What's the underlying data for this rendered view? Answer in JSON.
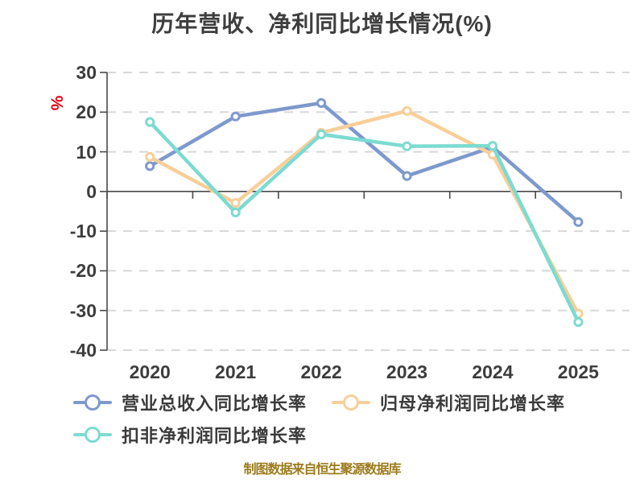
{
  "title": "历年营收、净利同比增长情况(%)",
  "y_axis_unit": "%",
  "footer": "制图数据来自恒生聚源数据库",
  "colors": {
    "unit_label": "#e60012",
    "footer_text": "#9c7b1c",
    "axis_line": "#4a4a4a",
    "grid_line": "#d8d8d8",
    "tick_text": "#3d3d3d"
  },
  "chart_data": {
    "type": "line",
    "title": "历年营收、净利同比增长情况(%)",
    "categories": [
      "2020",
      "2021",
      "2022",
      "2023",
      "2024",
      "2025"
    ],
    "series": [
      {
        "name": "营业总收入同比增长率",
        "color": "#7d99cd",
        "values": [
          6.4,
          18.9,
          22.3,
          3.9,
          11.2,
          -7.7
        ]
      },
      {
        "name": "归母净利润同比增长率",
        "color": "#f8cf99",
        "values": [
          8.7,
          -2.9,
          14.8,
          20.3,
          9.3,
          -30.8
        ]
      },
      {
        "name": "扣非净利润同比增长率",
        "color": "#7cdbd1",
        "values": [
          17.5,
          -5.3,
          14.4,
          11.4,
          11.5,
          -32.9
        ]
      }
    ],
    "ylabel": "%",
    "xlabel": "",
    "ylim": [
      -40,
      30
    ],
    "ytick_step": 10,
    "grid": "horizontal dashed, solid line at 0",
    "legend_position": "bottom-left",
    "marker": "hollow-circle"
  }
}
